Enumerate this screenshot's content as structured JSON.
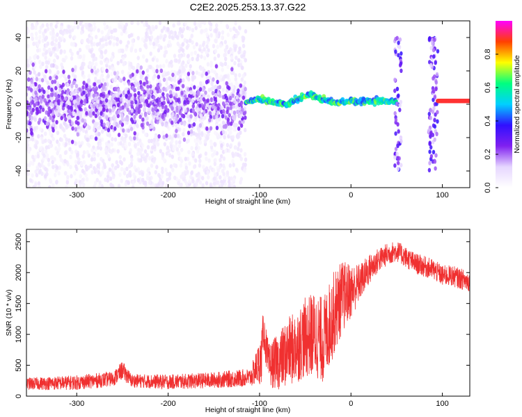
{
  "title": "C2E2.2025.253.13.37.G22",
  "chart_data": [
    {
      "type": "heatmap",
      "title": "C2E2.2025.253.13.37.G22",
      "xlabel": "Height of straight line (km)",
      "ylabel": "Frequency (Hz)",
      "xlim": [
        -355,
        130
      ],
      "ylim": [
        -50,
        50
      ],
      "xticks": [
        -300,
        -200,
        -100,
        0,
        100
      ],
      "yticks": [
        -40,
        -20,
        0,
        20,
        40
      ],
      "colorbar": {
        "label": "Normalized spectral amplitude",
        "range": [
          0.0,
          1.0
        ],
        "ticks": [
          0.0,
          0.2,
          0.4,
          0.6,
          0.8
        ],
        "tick_labels": [
          "0.0",
          "0.2",
          "0.4",
          "0.6",
          "0.8"
        ],
        "colormap": [
          "#ffffff",
          "#e6d6ff",
          "#8020f0",
          "#3010ff",
          "#00d0ff",
          "#00ff80",
          "#ffff00",
          "#ff4000",
          "#ff00ff"
        ]
      },
      "features": [
        {
          "name": "diffuse noise",
          "x_range": [
            -355,
            -115
          ],
          "freq_spread_hz": 50,
          "amplitude": 0.05
        },
        {
          "name": "dense core",
          "x_range": [
            -355,
            -115
          ],
          "freq_spread_hz": 8,
          "amplitude": 0.15
        },
        {
          "name": "tone track",
          "x": [
            -115,
            -100,
            -85,
            -70,
            -55,
            -45,
            -35,
            -25,
            -15,
            0,
            20,
            40,
            50
          ],
          "freq_hz": [
            1,
            3,
            1,
            0,
            4,
            6,
            4,
            2,
            1,
            2,
            2,
            2,
            2
          ],
          "amplitude": 0.55
        },
        {
          "name": "burst",
          "x_range": [
            48,
            55
          ],
          "freq_spread_hz": 40,
          "amplitude": 0.2
        },
        {
          "name": "burst",
          "x_range": [
            85,
            95
          ],
          "freq_spread_hz": 40,
          "amplitude": 0.2
        },
        {
          "name": "tone",
          "x_range": [
            95,
            130
          ],
          "freq_hz": 2,
          "amplitude": 0.9
        }
      ]
    },
    {
      "type": "line",
      "xlabel": "Height of straight line (km)",
      "ylabel": "SNR (10 * v/v)",
      "xlim": [
        -355,
        130
      ],
      "ylim": [
        0,
        2700
      ],
      "xticks": [
        -300,
        -200,
        -100,
        0,
        100
      ],
      "yticks": [
        0,
        500,
        1000,
        1500,
        2000,
        2500
      ],
      "color": "#f03030",
      "series": [
        {
          "name": "SNR",
          "x": [
            -355,
            -300,
            -260,
            -250,
            -240,
            -200,
            -150,
            -110,
            -98,
            -96,
            -90,
            -80,
            -70,
            -60,
            -50,
            -40,
            -30,
            -20,
            -10,
            0,
            10,
            20,
            30,
            40,
            50,
            60,
            70,
            80,
            90,
            100,
            110,
            120,
            130
          ],
          "y": [
            200,
            220,
            280,
            420,
            250,
            230,
            260,
            300,
            600,
            1100,
            500,
            550,
            700,
            800,
            950,
            1000,
            900,
            1300,
            1600,
            1700,
            1850,
            2050,
            2200,
            2300,
            2350,
            2250,
            2150,
            2100,
            2050,
            1950,
            1950,
            1900,
            1850
          ],
          "noise_amplitude": [
            100,
            120,
            120,
            150,
            110,
            120,
            130,
            150,
            400,
            300,
            350,
            450,
            550,
            600,
            650,
            700,
            700,
            700,
            600,
            450,
            300,
            250,
            200,
            180,
            170,
            170,
            170,
            170,
            170,
            170,
            170,
            170,
            170
          ]
        }
      ]
    }
  ]
}
